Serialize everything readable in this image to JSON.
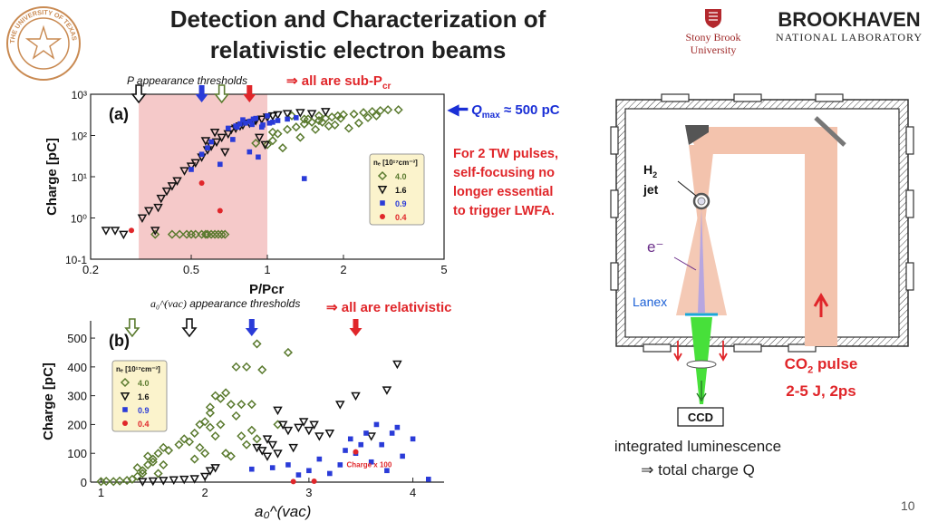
{
  "slide": {
    "title_line1": "Detection and Characterization of",
    "title_line2": "relativistic electron beams",
    "page_number": "10"
  },
  "logos": {
    "ut_seal_text": "THE UNIVERSITY OF TEXAS AT AUSTIN",
    "stony_brook_line1": "Stony Brook",
    "stony_brook_line2": "University",
    "bnl_line1": "BROOKHAVEN",
    "bnl_line2": "NATIONAL LABORATORY"
  },
  "panel_a": {
    "threshold_label": "P appearance thresholds",
    "threshold_conclusion": "⇒ all are sub-P",
    "threshold_sub": "cr",
    "panel_label": "(a)",
    "qmax_label": "Q",
    "qmax_sub": "max",
    "qmax_value": "≈ 500 pC",
    "legend_title": "nₑ [10¹⁷cm⁻³]"
  },
  "panel_b": {
    "threshold_label": "appearance thresholds",
    "a0_label": "a₀^(vac)",
    "threshold_conclusion": "⇒ all are relativistic",
    "panel_label": "(b)",
    "legend_title": "nₑ [10¹⁷cm⁻³]",
    "charge_note": "Charge x 100"
  },
  "note": {
    "line1": "For 2 TW pulses,",
    "line2": "self-focusing no",
    "line3": "longer essential",
    "line4": "to trigger LWFA."
  },
  "diagram": {
    "h2_label": "H",
    "h2_sub": "2",
    "jet_label": "jet",
    "electron_label": "e⁻",
    "lanex_label": "Lanex",
    "co2_line1": "CO",
    "co2_sub": "2",
    "co2_line1_end": " pulse",
    "co2_line2": "2-5 J, 2ps",
    "ccd_label": "CCD"
  },
  "caption": {
    "line1": "integrated luminescence",
    "line2": "⇒ total charge Q"
  },
  "colors": {
    "green": "#5a7a2e",
    "black": "#111111",
    "blue": "#2a3bd8",
    "red": "#e0262a",
    "shade": "#f5c9c9",
    "beam": "#f3c3ad"
  },
  "chart_data": [
    {
      "type": "scatter",
      "title": "(a)",
      "xlabel": "P/Pcr",
      "ylabel": "Charge [pC]",
      "xscale": "log",
      "yscale": "log",
      "xlim": [
        0.2,
        5
      ],
      "ylim": [
        0.1,
        1000
      ],
      "xticks": [
        "0.2",
        "0.5",
        "1",
        "2",
        "5"
      ],
      "yticks": [
        "10-1",
        "10⁰",
        "10¹",
        "10²",
        "10³"
      ],
      "shaded_region": [
        0.31,
        1.0
      ],
      "threshold_arrows": [
        {
          "x": 0.31,
          "color": "black"
        },
        {
          "x": 0.55,
          "color": "blue"
        },
        {
          "x": 0.66,
          "color": "green"
        },
        {
          "x": 0.85,
          "color": "red"
        }
      ],
      "legend": [
        {
          "label": "4.0",
          "marker": "diamond",
          "color": "green"
        },
        {
          "label": "1.6",
          "marker": "triangle-down",
          "color": "black"
        },
        {
          "label": "0.9",
          "marker": "square",
          "color": "blue"
        },
        {
          "label": "0.4",
          "marker": "circle",
          "color": "red"
        }
      ],
      "series": [
        {
          "name": "4.0",
          "marker": "diamond",
          "points": [
            [
              0.42,
              0.4
            ],
            [
              0.45,
              0.4
            ],
            [
              0.48,
              0.4
            ],
            [
              0.5,
              0.4
            ],
            [
              0.52,
              0.4
            ],
            [
              0.55,
              0.4
            ],
            [
              0.57,
              0.4
            ],
            [
              0.58,
              0.4
            ],
            [
              0.6,
              0.4
            ],
            [
              0.62,
              0.4
            ],
            [
              0.64,
              0.4
            ],
            [
              0.66,
              0.4
            ],
            [
              0.68,
              0.4
            ],
            [
              0.36,
              0.4
            ],
            [
              0.9,
              65
            ],
            [
              1.0,
              60
            ],
            [
              1.05,
              75
            ],
            [
              1.1,
              110
            ],
            [
              1.2,
              140
            ],
            [
              1.3,
              160
            ],
            [
              1.4,
              190
            ],
            [
              1.5,
              210
            ],
            [
              1.6,
              230
            ],
            [
              1.7,
              260
            ],
            [
              1.8,
              280
            ],
            [
              1.9,
              300
            ],
            [
              2.0,
              320
            ],
            [
              2.2,
              330
            ],
            [
              2.4,
              360
            ],
            [
              2.6,
              380
            ],
            [
              2.8,
              400
            ],
            [
              3.0,
              420
            ],
            [
              1.25,
              300
            ],
            [
              1.45,
              250
            ],
            [
              1.65,
              210
            ],
            [
              1.85,
              180
            ],
            [
              2.1,
              150
            ],
            [
              2.3,
              200
            ],
            [
              1.35,
              90
            ],
            [
              1.55,
              140
            ],
            [
              1.75,
              170
            ],
            [
              1.95,
              260
            ],
            [
              1.15,
              50
            ],
            [
              1.05,
              120
            ],
            [
              2.5,
              270
            ],
            [
              2.7,
              300
            ],
            [
              3.3,
              420
            ],
            [
              1.6,
              300
            ],
            [
              1.4,
              250
            ]
          ]
        },
        {
          "name": "1.6",
          "marker": "triangle-down",
          "points": [
            [
              0.23,
              0.5
            ],
            [
              0.25,
              0.5
            ],
            [
              0.27,
              0.4
            ],
            [
              0.32,
              1.0
            ],
            [
              0.34,
              1.5
            ],
            [
              0.36,
              0.5
            ],
            [
              0.37,
              1.8
            ],
            [
              0.38,
              3.0
            ],
            [
              0.4,
              4.5
            ],
            [
              0.42,
              6.0
            ],
            [
              0.44,
              8.0
            ],
            [
              0.47,
              14
            ],
            [
              0.5,
              18
            ],
            [
              0.52,
              22
            ],
            [
              0.55,
              30
            ],
            [
              0.58,
              45
            ],
            [
              0.6,
              55
            ],
            [
              0.63,
              70
            ],
            [
              0.66,
              90
            ],
            [
              0.7,
              110
            ],
            [
              0.75,
              150
            ],
            [
              0.8,
              180
            ],
            [
              0.85,
              200
            ],
            [
              0.9,
              230
            ],
            [
              0.95,
              250
            ],
            [
              1.0,
              280
            ],
            [
              1.05,
              300
            ],
            [
              1.1,
              320
            ],
            [
              1.2,
              340
            ],
            [
              1.35,
              360
            ],
            [
              1.5,
              340
            ],
            [
              1.7,
              380
            ],
            [
              0.72,
              140
            ],
            [
              0.78,
              170
            ],
            [
              0.88,
              210
            ],
            [
              0.98,
              60
            ],
            [
              0.93,
              90
            ],
            [
              0.68,
              40
            ],
            [
              0.62,
              120
            ],
            [
              0.57,
              75
            ]
          ]
        },
        {
          "name": "0.9",
          "marker": "square",
          "points": [
            [
              0.5,
              15
            ],
            [
              0.55,
              35
            ],
            [
              0.58,
              50
            ],
            [
              0.6,
              70
            ],
            [
              0.65,
              20
            ],
            [
              0.7,
              150
            ],
            [
              0.75,
              170
            ],
            [
              0.78,
              190
            ],
            [
              0.82,
              200
            ],
            [
              0.85,
              220
            ],
            [
              0.88,
              250
            ],
            [
              0.9,
              260
            ],
            [
              0.95,
              160
            ],
            [
              1.0,
              300
            ],
            [
              1.05,
              210
            ],
            [
              1.1,
              230
            ],
            [
              1.2,
              250
            ],
            [
              1.3,
              270
            ],
            [
              1.4,
              9
            ],
            [
              0.85,
              40
            ],
            [
              0.92,
              30
            ],
            [
              0.8,
              240
            ],
            [
              0.87,
              185
            ],
            [
              0.96,
              180
            ],
            [
              1.02,
              200
            ],
            [
              0.76,
              160
            ],
            [
              0.73,
              80
            ]
          ]
        },
        {
          "name": "0.4",
          "marker": "circle",
          "points": [
            [
              0.29,
              0.5
            ],
            [
              0.55,
              7
            ],
            [
              0.65,
              1.5
            ]
          ]
        }
      ]
    },
    {
      "type": "scatter",
      "title": "(b)",
      "xlabel": "a₀^(vac)",
      "ylabel": "Charge [pC]",
      "xlim": [
        0.9,
        4.3
      ],
      "ylim": [
        0,
        560
      ],
      "xticks": [
        "1",
        "2",
        "3",
        "4"
      ],
      "yticks": [
        "0",
        "100",
        "200",
        "300",
        "400",
        "500"
      ],
      "threshold_arrows": [
        {
          "x": 1.3,
          "color": "green"
        },
        {
          "x": 1.85,
          "color": "black"
        },
        {
          "x": 2.45,
          "color": "blue"
        },
        {
          "x": 3.45,
          "color": "red"
        }
      ],
      "legend": [
        {
          "label": "4.0",
          "marker": "diamond",
          "color": "green"
        },
        {
          "label": "1.6",
          "marker": "triangle-down",
          "color": "black"
        },
        {
          "label": "0.9",
          "marker": "square",
          "color": "blue"
        },
        {
          "label": "0.4",
          "marker": "circle",
          "color": "red"
        }
      ],
      "series": [
        {
          "name": "4.0",
          "marker": "diamond",
          "points": [
            [
              1.0,
              2
            ],
            [
              1.05,
              3
            ],
            [
              1.12,
              2
            ],
            [
              1.18,
              4
            ],
            [
              1.25,
              6
            ],
            [
              1.3,
              10
            ],
            [
              1.35,
              20
            ],
            [
              1.4,
              40
            ],
            [
              1.45,
              60
            ],
            [
              1.5,
              80
            ],
            [
              1.55,
              100
            ],
            [
              1.6,
              120
            ],
            [
              1.65,
              110
            ],
            [
              1.45,
              90
            ],
            [
              1.5,
              70
            ],
            [
              1.4,
              30
            ],
            [
              1.35,
              50
            ],
            [
              1.55,
              30
            ],
            [
              1.6,
              60
            ],
            [
              1.75,
              130
            ],
            [
              1.8,
              150
            ],
            [
              1.85,
              140
            ],
            [
              1.9,
              170
            ],
            [
              1.95,
              200
            ],
            [
              2.0,
              210
            ],
            [
              2.05,
              260
            ],
            [
              2.1,
              300
            ],
            [
              2.15,
              290
            ],
            [
              2.2,
              310
            ],
            [
              2.25,
              270
            ],
            [
              2.3,
              400
            ],
            [
              2.35,
              270
            ],
            [
              2.4,
              400
            ],
            [
              2.45,
              270
            ],
            [
              2.5,
              480
            ],
            [
              2.05,
              190
            ],
            [
              2.1,
              160
            ],
            [
              2.15,
              200
            ],
            [
              2.2,
              100
            ],
            [
              2.25,
              90
            ],
            [
              2.3,
              230
            ],
            [
              2.35,
              160
            ],
            [
              2.4,
              130
            ],
            [
              2.45,
              180
            ],
            [
              2.5,
              150
            ],
            [
              1.95,
              120
            ],
            [
              2.0,
              100
            ],
            [
              1.9,
              80
            ],
            [
              2.05,
              240
            ],
            [
              2.55,
              390
            ],
            [
              2.8,
              450
            ],
            [
              2.7,
              200
            ]
          ]
        },
        {
          "name": "1.6",
          "marker": "triangle-down",
          "points": [
            [
              1.4,
              2
            ],
            [
              1.5,
              4
            ],
            [
              1.6,
              6
            ],
            [
              1.7,
              8
            ],
            [
              1.8,
              10
            ],
            [
              1.9,
              12
            ],
            [
              2.0,
              20
            ],
            [
              2.05,
              40
            ],
            [
              2.1,
              50
            ],
            [
              2.55,
              110
            ],
            [
              2.6,
              150
            ],
            [
              2.65,
              130
            ],
            [
              2.7,
              250
            ],
            [
              2.75,
              200
            ],
            [
              2.8,
              180
            ],
            [
              2.85,
              120
            ],
            [
              2.9,
              190
            ],
            [
              2.95,
              210
            ],
            [
              3.0,
              180
            ],
            [
              3.05,
              200
            ],
            [
              3.1,
              160
            ],
            [
              3.2,
              170
            ],
            [
              3.3,
              270
            ],
            [
              3.45,
              300
            ],
            [
              3.6,
              160
            ],
            [
              3.75,
              320
            ],
            [
              3.85,
              410
            ],
            [
              2.6,
              90
            ],
            [
              2.7,
              100
            ],
            [
              2.5,
              120
            ]
          ]
        },
        {
          "name": "0.9",
          "marker": "square",
          "points": [
            [
              2.45,
              45
            ],
            [
              2.65,
              50
            ],
            [
              2.8,
              60
            ],
            [
              2.9,
              25
            ],
            [
              3.0,
              40
            ],
            [
              3.1,
              80
            ],
            [
              3.2,
              30
            ],
            [
              3.3,
              60
            ],
            [
              3.4,
              150
            ],
            [
              3.5,
              130
            ],
            [
              3.55,
              170
            ],
            [
              3.6,
              70
            ],
            [
              3.7,
              130
            ],
            [
              3.75,
              40
            ],
            [
              3.8,
              170
            ],
            [
              3.85,
              190
            ],
            [
              3.9,
              90
            ],
            [
              4.0,
              150
            ],
            [
              4.15,
              10
            ],
            [
              3.35,
              110
            ],
            [
              3.45,
              100
            ],
            [
              3.65,
              200
            ]
          ]
        },
        {
          "name": "0.4",
          "marker": "circle",
          "points": [
            [
              2.85,
              2
            ],
            [
              3.05,
              3
            ],
            [
              3.45,
              105
            ]
          ]
        }
      ]
    }
  ]
}
